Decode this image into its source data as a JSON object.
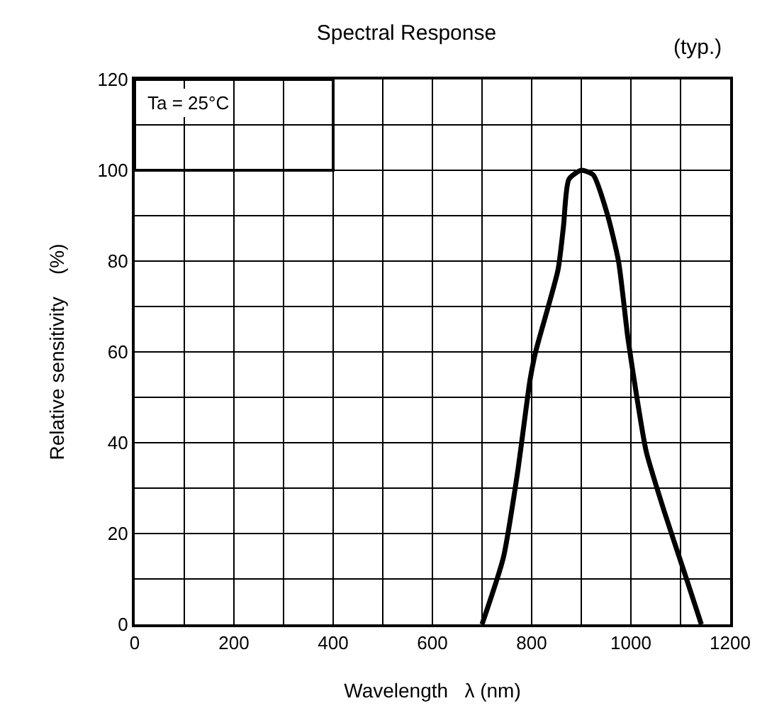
{
  "chart_data": {
    "type": "line",
    "title": "Spectral Response",
    "xlabel": "Wavelength   λ (nm)",
    "ylabel": "Relative sensitivity    (%)",
    "annotations": [
      "(typ.)",
      "Ta = 25°C"
    ],
    "x": [
      700,
      743,
      771,
      797,
      808,
      853,
      864,
      875,
      900,
      924,
      952,
      975,
      994,
      1012,
      1031,
      1068,
      1106,
      1142
    ],
    "series": [
      {
        "color": "#000000",
        "values": [
          0,
          14.7,
          33,
          54,
          60,
          78,
          87.5,
          98,
          100,
          99,
          90.5,
          80,
          63,
          50,
          38,
          24.6,
          12,
          0
        ]
      }
    ],
    "xlim": [
      0,
      1200
    ],
    "ylim": [
      0,
      120
    ],
    "xticks": [
      0,
      {
        "value": 100,
        "label": null
      },
      200,
      {
        "value": 300,
        "label": null
      },
      400,
      {
        "value": 500,
        "label": null
      },
      600,
      {
        "value": 700,
        "label": null
      },
      800,
      {
        "value": 900,
        "label": null
      },
      1000,
      {
        "value": 1100,
        "label": null
      },
      1200
    ],
    "yticks": [
      0,
      {
        "value": 10,
        "label": null
      },
      20,
      {
        "value": 30,
        "label": null
      },
      40,
      {
        "value": 50,
        "label": null
      },
      60,
      {
        "value": 70,
        "label": null
      },
      80,
      {
        "value": 90,
        "label": null
      },
      100,
      {
        "value": 110,
        "label": null
      },
      120
    ],
    "grid": true,
    "marker": "none",
    "line_style": "solid"
  }
}
